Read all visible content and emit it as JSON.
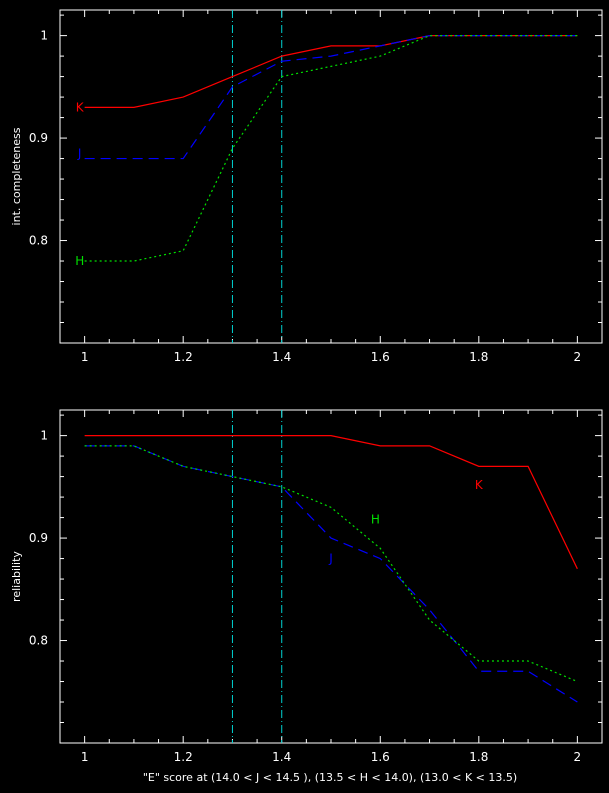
{
  "chart_data": [
    {
      "type": "line",
      "ylabel": "int. completeness",
      "xlabel": "",
      "xlim": [
        0.95,
        2.05
      ],
      "ylim": [
        0.7,
        1.025
      ],
      "xticks": [
        "1",
        "1.2",
        "1.4",
        "1.6",
        "1.8",
        "2"
      ],
      "yticks": [
        "0.8",
        "0.9",
        "1"
      ],
      "vlines": [
        1.3,
        1.4
      ],
      "vline_color": "#00d0d0",
      "x": [
        1.0,
        1.1,
        1.2,
        1.3,
        1.4,
        1.5,
        1.6,
        1.7,
        1.8,
        1.9,
        2.0
      ],
      "series": [
        {
          "name": "K",
          "color": "#ff0000",
          "dash": "solid",
          "label_at": [
            0.99,
            0.93
          ],
          "values": [
            0.93,
            0.93,
            0.94,
            0.96,
            0.98,
            0.99,
            0.99,
            1.0,
            1.0,
            1.0,
            1.0
          ]
        },
        {
          "name": "J",
          "color": "#0000ff",
          "dash": "dashed",
          "label_at": [
            0.99,
            0.885
          ],
          "values": [
            0.88,
            0.88,
            0.88,
            0.95,
            0.975,
            0.98,
            0.99,
            1.0,
            1.0,
            1.0,
            1.0
          ]
        },
        {
          "name": "H",
          "color": "#00e000",
          "dash": "dotted",
          "label_at": [
            0.99,
            0.78
          ],
          "values": [
            0.78,
            0.78,
            0.79,
            0.89,
            0.96,
            0.97,
            0.98,
            1.0,
            1.0,
            1.0,
            1.0
          ]
        }
      ]
    },
    {
      "type": "line",
      "ylabel": "reliability",
      "xlabel": "\"E\" score at (14.0 < J < 14.5 ), (13.5 < H < 14.0), (13.0 < K < 13.5)",
      "xlim": [
        0.95,
        2.05
      ],
      "ylim": [
        0.7,
        1.025
      ],
      "xticks": [
        "1",
        "1.2",
        "1.4",
        "1.6",
        "1.8",
        "2"
      ],
      "yticks": [
        "0.8",
        "0.9",
        "1"
      ],
      "vlines": [
        1.3,
        1.4
      ],
      "vline_color": "#00d0d0",
      "x": [
        1.0,
        1.1,
        1.2,
        1.3,
        1.4,
        1.5,
        1.6,
        1.7,
        1.8,
        1.9,
        2.0
      ],
      "series": [
        {
          "name": "K",
          "color": "#ff0000",
          "dash": "solid",
          "label_at": [
            1.8,
            0.952
          ],
          "values": [
            1.0,
            1.0,
            1.0,
            1.0,
            1.0,
            1.0,
            0.99,
            0.99,
            0.97,
            0.97,
            0.87
          ]
        },
        {
          "name": "J",
          "color": "#0000ff",
          "dash": "dashed",
          "label_at": [
            1.5,
            0.88
          ],
          "values": [
            0.99,
            0.99,
            0.97,
            0.96,
            0.95,
            0.9,
            0.88,
            0.83,
            0.77,
            0.77,
            0.74
          ]
        },
        {
          "name": "H",
          "color": "#00e000",
          "dash": "dotted",
          "label_at": [
            1.59,
            0.918
          ],
          "values": [
            0.99,
            0.99,
            0.97,
            0.96,
            0.95,
            0.93,
            0.89,
            0.82,
            0.78,
            0.78,
            0.76
          ]
        }
      ]
    }
  ]
}
